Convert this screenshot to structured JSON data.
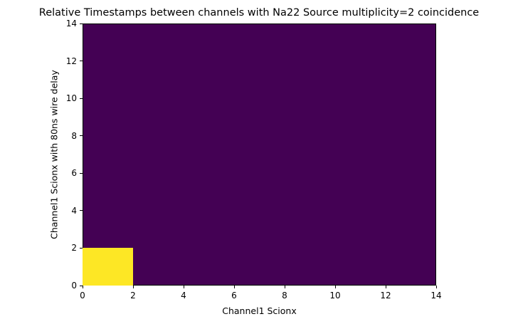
{
  "chart_data": {
    "type": "heatmap",
    "title": "Relative Timestamps between channels with Na22 Source multiplicity=2 coincidence",
    "xlabel": "Channel1 Scionx",
    "ylabel": "Channel1 Scionx with 80ns wire delay",
    "xlim": [
      0,
      14
    ],
    "ylim": [
      0,
      14
    ],
    "xticks": [
      "0",
      "2",
      "4",
      "6",
      "8",
      "10",
      "12",
      "14"
    ],
    "yticks": [
      "0",
      "2",
      "4",
      "6",
      "8",
      "10",
      "12",
      "14"
    ],
    "bin_size": 2,
    "colormap": "viridis",
    "background_color": "#440154",
    "cells": [
      {
        "x0": 0,
        "x1": 2,
        "y0": 0,
        "y1": 2,
        "value": "max",
        "color": "#fde725"
      }
    ],
    "grid": false,
    "legend": null
  }
}
